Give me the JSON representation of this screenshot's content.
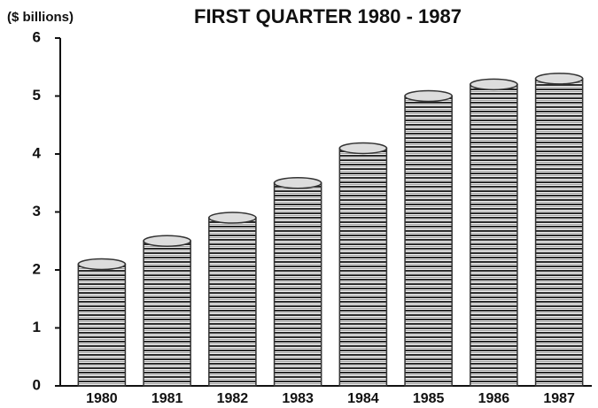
{
  "chart_data": {
    "type": "bar",
    "title": "FIRST QUARTER 1980 - 1987",
    "y_label": "($ billions)",
    "categories": [
      "1980",
      "1981",
      "1982",
      "1983",
      "1984",
      "1985",
      "1986",
      "1987"
    ],
    "values": [
      2.1,
      2.5,
      2.9,
      3.5,
      4.1,
      5.0,
      5.2,
      5.3
    ],
    "color": "#333333",
    "ylim": [
      0,
      6
    ],
    "yticks": [
      0,
      1,
      2,
      3,
      4,
      5,
      6
    ],
    "grid": false
  }
}
